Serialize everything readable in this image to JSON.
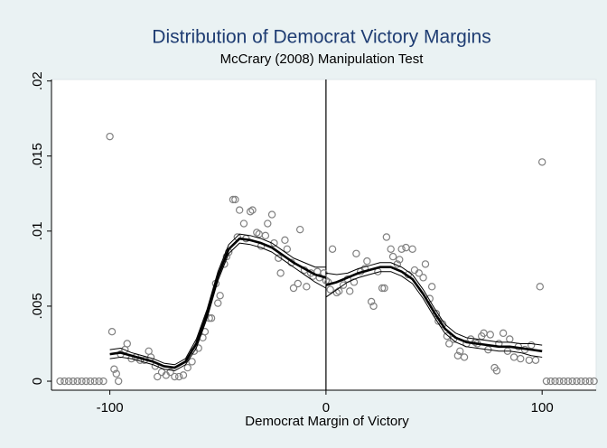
{
  "chart_data": {
    "type": "scatter",
    "title": "Distribution of Democrat Victory Margins",
    "subtitle": "McCrary (2008) Manipulation Test",
    "x_label": "Democrat Margin of Victory",
    "title_color": "#1f3d73",
    "marker_color": "#808080",
    "line_color": "#000000",
    "xlim": [
      -127,
      125
    ],
    "ylim": [
      -0.0006,
      0.0201
    ],
    "xticks": [
      -100,
      0,
      100
    ],
    "yticks": [
      0,
      {
        "value": 0.005,
        "label": ".005"
      },
      {
        "value": 0.01,
        "label": ".01"
      },
      {
        "value": 0.015,
        "label": ".015"
      },
      {
        "value": 0.02,
        "label": ".02"
      }
    ],
    "cutoff": 0,
    "scatter": {
      "x": [
        -123,
        -121,
        -119,
        -117,
        -115,
        -113,
        -111,
        -109,
        -107,
        -105,
        -103,
        -100,
        -99,
        -98,
        -97,
        -96,
        -95,
        -93,
        -92,
        -90,
        -88,
        -86,
        -84,
        -82,
        -81,
        -79,
        -78,
        -76,
        -74,
        -72,
        -70,
        -68,
        -66,
        -64,
        -62,
        -61,
        -59,
        -57,
        -56,
        -54,
        -53,
        -51,
        -50,
        -49,
        -47,
        -46,
        -45,
        -43,
        -42,
        -41,
        -40,
        -38,
        -37,
        -35,
        -34,
        -32,
        -31,
        -30,
        -28,
        -27,
        -25,
        -24,
        -22,
        -21,
        -19,
        -18,
        -16,
        -15,
        -13,
        -12,
        -10,
        -9,
        -7,
        -6,
        -4,
        -3,
        -1,
        0,
        1,
        2,
        3,
        5,
        6,
        8,
        10,
        11,
        13,
        14,
        16,
        18,
        19,
        21,
        22,
        24,
        26,
        27,
        28,
        30,
        31,
        33,
        34,
        35,
        37,
        38,
        40,
        41,
        43,
        45,
        46,
        48,
        49,
        51,
        52,
        54,
        56,
        57,
        59,
        61,
        62,
        64,
        65,
        67,
        69,
        70,
        72,
        73,
        75,
        76,
        78,
        79,
        80,
        82,
        84,
        85,
        87,
        89,
        90,
        92,
        94,
        95,
        97,
        99,
        100,
        102,
        104,
        106,
        108,
        110,
        112,
        114,
        116,
        118,
        120,
        122,
        124
      ],
      "y": [
        0,
        0,
        0,
        0,
        0,
        0,
        0,
        0,
        0,
        0,
        0,
        0.0163,
        0.0033,
        0.0008,
        0.0005,
        0.0,
        0.0018,
        0.0021,
        0.0025,
        0.0015,
        0.0016,
        0.0014,
        0.0014,
        0.002,
        0.0016,
        0.001,
        0.0003,
        0.0006,
        0.0004,
        0.0006,
        0.0003,
        0.0003,
        0.0004,
        0.0009,
        0.0013,
        0.002,
        0.0022,
        0.0029,
        0.0033,
        0.0042,
        0.0042,
        0.0065,
        0.0052,
        0.0057,
        0.0078,
        0.0083,
        0.0086,
        0.0121,
        0.0121,
        0.0096,
        0.0114,
        0.0105,
        0.0095,
        0.0113,
        0.0114,
        0.0099,
        0.0098,
        0.009,
        0.0097,
        0.0105,
        0.0111,
        0.0092,
        0.0082,
        0.0072,
        0.0094,
        0.0088,
        0.0079,
        0.0062,
        0.0065,
        0.0101,
        0.0074,
        0.0063,
        0.0072,
        0.007,
        0.0073,
        0.0069,
        0.0072,
        0.0067,
        0.0066,
        0.0061,
        0.0088,
        0.0059,
        0.006,
        0.0064,
        0.0068,
        0.006,
        0.0066,
        0.0085,
        0.0073,
        0.0075,
        0.008,
        0.0053,
        0.005,
        0.0073,
        0.0062,
        0.0062,
        0.0096,
        0.0088,
        0.0083,
        0.0078,
        0.0081,
        0.0088,
        0.0089,
        0.0071,
        0.0088,
        0.0074,
        0.0072,
        0.0069,
        0.0078,
        0.0055,
        0.0063,
        0.0045,
        0.004,
        0.0038,
        0.003,
        0.0025,
        0.0028,
        0.0017,
        0.002,
        0.0016,
        0.0025,
        0.0028,
        0.0026,
        0.0025,
        0.003,
        0.0032,
        0.0021,
        0.0031,
        0.0009,
        0.0007,
        0.0025,
        0.0032,
        0.002,
        0.0028,
        0.0016,
        0.0023,
        0.0015,
        0.0021,
        0.0014,
        0.0024,
        0.0014,
        0.0063,
        0.0146,
        0,
        0,
        0,
        0,
        0,
        0,
        0,
        0,
        0,
        0,
        0,
        0
      ]
    },
    "fits": [
      {
        "x": [
          -100,
          -95,
          -90,
          -85,
          -80,
          -75,
          -70,
          -65,
          -60,
          -55,
          -50,
          -45,
          -40,
          -35,
          -30,
          -25,
          -20,
          -15,
          -10,
          -5,
          0
        ],
        "y": [
          0.0018,
          0.0019,
          0.0017,
          0.0015,
          0.0013,
          0.001,
          0.0009,
          0.0013,
          0.0025,
          0.0045,
          0.007,
          0.0088,
          0.0095,
          0.0094,
          0.0092,
          0.0089,
          0.0084,
          0.0079,
          0.0075,
          0.0071,
          0.0069
        ],
        "lower": [
          0.0015,
          0.0016,
          0.0015,
          0.0013,
          0.0011,
          0.0008,
          0.0007,
          0.0011,
          0.0022,
          0.0042,
          0.0067,
          0.0085,
          0.0092,
          0.0091,
          0.0089,
          0.0086,
          0.0081,
          0.0076,
          0.0071,
          0.0066,
          0.0062
        ],
        "upper": [
          0.0021,
          0.0022,
          0.0019,
          0.0017,
          0.0015,
          0.0012,
          0.0011,
          0.0015,
          0.0028,
          0.0048,
          0.0073,
          0.0091,
          0.0098,
          0.0097,
          0.0095,
          0.0092,
          0.0087,
          0.0082,
          0.0079,
          0.0076,
          0.0076
        ]
      },
      {
        "x": [
          0,
          5,
          10,
          15,
          20,
          25,
          30,
          35,
          40,
          45,
          50,
          55,
          60,
          65,
          70,
          75,
          80,
          85,
          90,
          95,
          100
        ],
        "y": [
          0.0064,
          0.0066,
          0.0069,
          0.0072,
          0.0074,
          0.0076,
          0.0076,
          0.0073,
          0.0068,
          0.0058,
          0.0046,
          0.0035,
          0.0029,
          0.0026,
          0.0025,
          0.0024,
          0.0023,
          0.0023,
          0.0022,
          0.0021,
          0.002
        ],
        "lower": [
          0.0056,
          0.0061,
          0.0066,
          0.0069,
          0.0071,
          0.0073,
          0.0073,
          0.007,
          0.0065,
          0.0055,
          0.0043,
          0.0032,
          0.0026,
          0.0023,
          0.0022,
          0.0021,
          0.002,
          0.002,
          0.0019,
          0.0017,
          0.0016
        ],
        "upper": [
          0.0072,
          0.0071,
          0.0072,
          0.0075,
          0.0077,
          0.0079,
          0.0079,
          0.0076,
          0.0071,
          0.0061,
          0.0049,
          0.0038,
          0.0032,
          0.0029,
          0.0028,
          0.0027,
          0.0026,
          0.0026,
          0.0025,
          0.0025,
          0.0024
        ]
      }
    ]
  }
}
